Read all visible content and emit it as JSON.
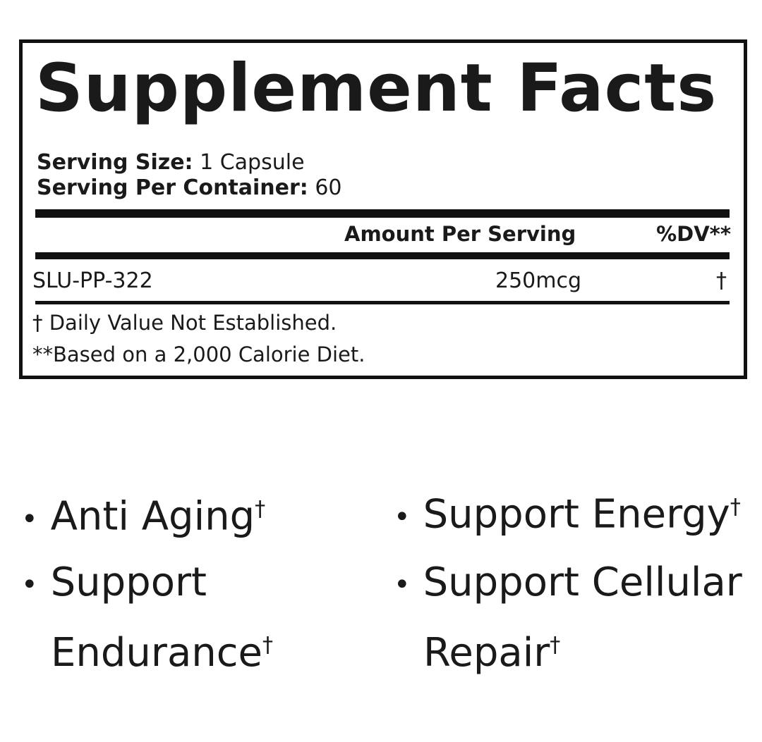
{
  "title": "Supplement Facts",
  "serving_size_label": "Serving Size:",
  "serving_size": " 1 Capsule",
  "servings_label": "Serving Per Container:",
  "servings": " 60",
  "col_amount": "Amount Per Serving",
  "col_dv": "%DV**",
  "rows": [
    {
      "name": "SLU-PP-322",
      "amount": "250mcg",
      "dv": "†"
    }
  ],
  "footnotes": [
    "† Daily Value Not Established.",
    "**Based on a 2,000 Calorie Diet."
  ],
  "benefits": [
    {
      "line1": "Anti Aging",
      "line2": "",
      "mark": "†"
    },
    {
      "line1": "Support Energy",
      "line2": "",
      "mark": "†"
    },
    {
      "line1": "Support",
      "line2": "Endurance",
      "mark": "†"
    },
    {
      "line1": "Support Cellular",
      "line2": "Repair",
      "mark": "†"
    }
  ],
  "bullet": "•"
}
